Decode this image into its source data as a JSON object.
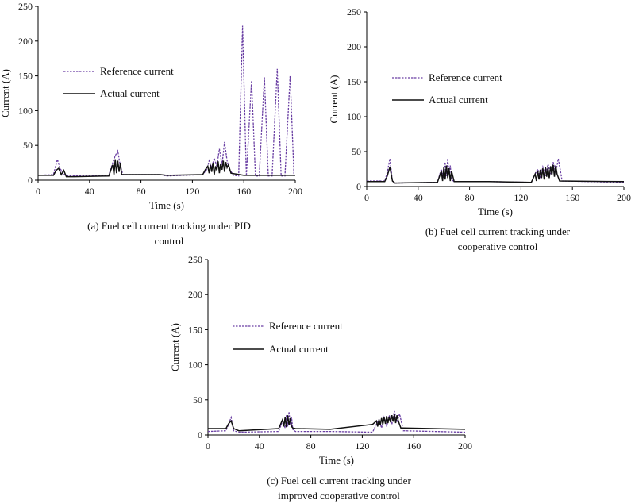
{
  "colors": {
    "reference": "#6a3fa3",
    "actual": "#111111"
  },
  "chart_data": [
    {
      "type": "line",
      "caption_lines": [
        "(a) Fuel cell current tracking under PID",
        "control"
      ],
      "xlabel": "Time (s)",
      "ylabel": "Current (A)",
      "xlim": [
        0,
        200
      ],
      "ylim": [
        0,
        250
      ],
      "xticks": [
        0,
        40,
        80,
        120,
        160,
        200
      ],
      "yticks": [
        0,
        50,
        100,
        150,
        200,
        250
      ],
      "legend": "upper-left",
      "series": [
        {
          "name": "Reference current",
          "style": "dashed-purple",
          "x": [
            0,
            12,
            15,
            17,
            19,
            22,
            26,
            40,
            55,
            58,
            60,
            62,
            64,
            66,
            70,
            95,
            100,
            128,
            131,
            133,
            135,
            137,
            139,
            141,
            143,
            145,
            147,
            149,
            152,
            156,
            159,
            162,
            166,
            169,
            172,
            176,
            179,
            182,
            186,
            189,
            192,
            196,
            199
          ],
          "y": [
            7,
            8,
            30,
            18,
            10,
            6,
            6,
            6,
            7,
            25,
            35,
            42,
            20,
            8,
            8,
            8,
            6,
            8,
            15,
            28,
            18,
            32,
            20,
            45,
            22,
            55,
            28,
            15,
            7,
            6,
            222,
            6,
            143,
            6,
            6,
            148,
            6,
            6,
            160,
            6,
            6,
            150,
            6
          ]
        },
        {
          "name": "Actual current",
          "style": "solid-black",
          "x": [
            0,
            12,
            14,
            16,
            18,
            20,
            22,
            28,
            55,
            58,
            59,
            60,
            61,
            62,
            63,
            64,
            65,
            66,
            70,
            95,
            100,
            128,
            130,
            132,
            133,
            134,
            135,
            136,
            137,
            138,
            139,
            140,
            141,
            142,
            143,
            144,
            145,
            146,
            147,
            148,
            150,
            160,
            200
          ],
          "y": [
            7,
            7,
            14,
            17,
            8,
            14,
            5,
            5,
            6,
            22,
            8,
            30,
            10,
            28,
            12,
            25,
            8,
            8,
            8,
            8,
            7,
            8,
            15,
            20,
            10,
            22,
            12,
            25,
            8,
            20,
            14,
            27,
            10,
            24,
            15,
            28,
            12,
            26,
            18,
            22,
            10,
            7,
            7
          ]
        }
      ]
    },
    {
      "type": "line",
      "caption_lines": [
        "(b) Fuel cell current tracking under",
        "cooperative control"
      ],
      "xlabel": "Time (s)",
      "ylabel": "Current (A)",
      "xlim": [
        0,
        200
      ],
      "ylim": [
        0,
        250
      ],
      "xticks": [
        0,
        40,
        80,
        120,
        160,
        200
      ],
      "yticks": [
        0,
        50,
        100,
        150,
        200,
        250
      ],
      "legend": "upper-left",
      "series": [
        {
          "name": "Reference current",
          "style": "dashed-purple",
          "x": [
            0,
            14,
            16,
            18,
            20,
            22,
            55,
            58,
            60,
            61,
            62,
            63,
            64,
            65,
            66,
            68,
            95,
            128,
            131,
            133,
            135,
            137,
            139,
            141,
            143,
            145,
            147,
            149,
            152,
            200
          ],
          "y": [
            8,
            8,
            20,
            40,
            8,
            5,
            6,
            25,
            12,
            35,
            15,
            40,
            18,
            30,
            10,
            7,
            7,
            6,
            18,
            25,
            12,
            28,
            15,
            32,
            18,
            35,
            20,
            40,
            8,
            6
          ]
        },
        {
          "name": "Actual current",
          "style": "solid-black",
          "x": [
            0,
            14,
            16,
            18,
            20,
            22,
            55,
            58,
            59,
            60,
            61,
            62,
            63,
            64,
            65,
            66,
            68,
            95,
            128,
            131,
            132,
            133,
            134,
            135,
            136,
            137,
            138,
            139,
            140,
            141,
            142,
            143,
            144,
            145,
            146,
            147,
            148,
            150,
            200
          ],
          "y": [
            7,
            7,
            15,
            28,
            8,
            5,
            6,
            22,
            8,
            28,
            10,
            30,
            12,
            26,
            8,
            22,
            7,
            7,
            6,
            18,
            8,
            22,
            10,
            24,
            12,
            26,
            10,
            28,
            14,
            27,
            12,
            29,
            16,
            31,
            14,
            30,
            18,
            8,
            7
          ]
        }
      ]
    },
    {
      "type": "line",
      "caption_lines": [
        "(c) Fuel cell current tracking under",
        "improved cooperative control"
      ],
      "xlabel": "Time (s)",
      "ylabel": "Current (A)",
      "xlim": [
        0,
        200
      ],
      "ylim": [
        0,
        250
      ],
      "xticks": [
        0,
        40,
        80,
        120,
        160,
        200
      ],
      "yticks": [
        0,
        50,
        100,
        150,
        200,
        250
      ],
      "legend": "upper-left",
      "series": [
        {
          "name": "Reference current",
          "style": "dashed-purple",
          "x": [
            0,
            14,
            16,
            18,
            20,
            24,
            55,
            58,
            60,
            61,
            62,
            63,
            64,
            65,
            66,
            68,
            95,
            128,
            131,
            133,
            135,
            137,
            139,
            141,
            143,
            145,
            147,
            149,
            152,
            200
          ],
          "y": [
            5,
            6,
            15,
            25,
            6,
            4,
            5,
            20,
            10,
            28,
            12,
            33,
            14,
            25,
            8,
            5,
            5,
            4,
            15,
            22,
            10,
            25,
            12,
            28,
            15,
            34,
            18,
            30,
            6,
            4
          ]
        },
        {
          "name": "Actual current",
          "style": "solid-black",
          "x": [
            0,
            14,
            16,
            18,
            20,
            24,
            55,
            58,
            59,
            60,
            61,
            62,
            63,
            64,
            65,
            66,
            68,
            95,
            128,
            131,
            132,
            133,
            134,
            135,
            136,
            137,
            138,
            139,
            140,
            141,
            142,
            143,
            144,
            145,
            146,
            147,
            148,
            150,
            200
          ],
          "y": [
            9,
            9,
            16,
            20,
            9,
            6,
            9,
            22,
            12,
            25,
            11,
            28,
            14,
            24,
            12,
            10,
            9,
            8,
            15,
            20,
            12,
            22,
            14,
            24,
            15,
            25,
            16,
            27,
            17,
            26,
            18,
            28,
            19,
            30,
            17,
            28,
            20,
            10,
            8
          ]
        }
      ]
    }
  ]
}
